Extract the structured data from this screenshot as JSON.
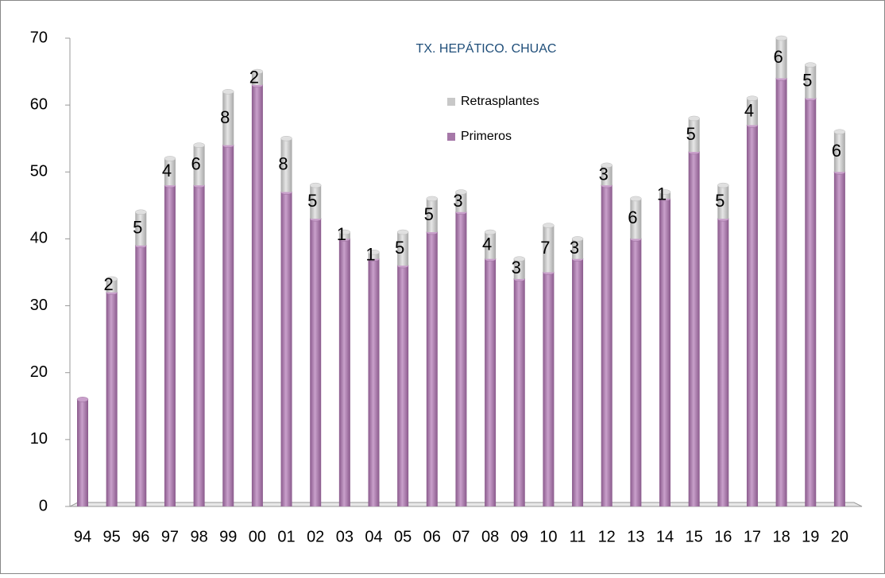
{
  "chart_data": {
    "type": "stacked-bar",
    "title": "TX. HEPÁTICO. CHUAC",
    "categories": [
      "94",
      "95",
      "96",
      "97",
      "98",
      "99",
      "00",
      "01",
      "02",
      "03",
      "04",
      "05",
      "06",
      "07",
      "08",
      "09",
      "10",
      "11",
      "12",
      "13",
      "14",
      "15",
      "16",
      "17",
      "18",
      "19",
      "20"
    ],
    "series": [
      {
        "name": "Primeros",
        "color": "#a678a8",
        "values": [
          16,
          32,
          39,
          48,
          48,
          54,
          63,
          47,
          43,
          40,
          37,
          36,
          41,
          44,
          37,
          34,
          35,
          37,
          48,
          40,
          46,
          53,
          43,
          57,
          64,
          61,
          50
        ]
      },
      {
        "name": "Retrasplantes",
        "color": "#c8c8c8",
        "values": [
          null,
          2,
          5,
          4,
          6,
          8,
          2,
          8,
          5,
          1,
          1,
          5,
          5,
          3,
          4,
          3,
          7,
          3,
          3,
          6,
          1,
          5,
          5,
          4,
          6,
          5,
          6
        ]
      }
    ],
    "ylim": [
      0,
      70
    ],
    "yticks": [
      0,
      10,
      20,
      30,
      40,
      50,
      60,
      70
    ],
    "grid": false,
    "legend": "top-center"
  }
}
